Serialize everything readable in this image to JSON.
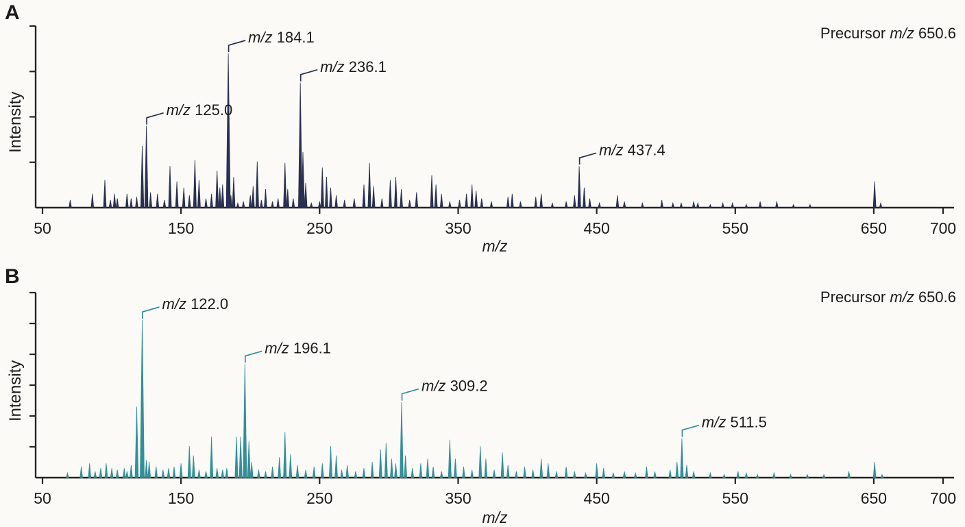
{
  "figure": {
    "background": "#fbfaf7",
    "text_color": "#1c1c1c",
    "axis_color": "#242424"
  },
  "panels": [
    {
      "panel_label": "A",
      "y_axis_label": "Intensity",
      "x_axis_label": "m/z",
      "series_color": "#2a3150",
      "precursor": {
        "pre": "Precursor ",
        "mid": "m/z",
        "val": " 650.6"
      }
    },
    {
      "panel_label": "B",
      "y_axis_label": "Intensity",
      "x_axis_label": "m/z",
      "series_color": "#338f99",
      "precursor": {
        "pre": "Precursor ",
        "mid": "m/z",
        "val": " 650.6"
      }
    }
  ],
  "chart_data": [
    {
      "type": "bar",
      "subtype": "mass-spectrum",
      "panel": "A",
      "title": "Precursor m/z 650.6",
      "xlabel": "m/z",
      "ylabel": "Intensity",
      "xlim": [
        50,
        700
      ],
      "x_ticks": [
        50,
        150,
        250,
        350,
        450,
        550,
        650,
        700
      ],
      "y_axis_note": "unlabeled intensity axis; peak heights are % of base peak",
      "annotated_peaks": [
        {
          "mz": 125.0,
          "label_prefix": "m/z",
          "label_value": "125.0"
        },
        {
          "mz": 184.1,
          "label_prefix": "m/z",
          "label_value": "184.1"
        },
        {
          "mz": 236.1,
          "label_prefix": "m/z",
          "label_value": "236.1"
        },
        {
          "mz": 437.4,
          "label_prefix": "m/z",
          "label_value": "437.4"
        }
      ],
      "peaks": [
        [
          70,
          5
        ],
        [
          86,
          9
        ],
        [
          95,
          18
        ],
        [
          99,
          5
        ],
        [
          102,
          9
        ],
        [
          104,
          6
        ],
        [
          111,
          9
        ],
        [
          114,
          6
        ],
        [
          118,
          7
        ],
        [
          122,
          40
        ],
        [
          125.0,
          53
        ],
        [
          128,
          10
        ],
        [
          133,
          9
        ],
        [
          138,
          5
        ],
        [
          142,
          27
        ],
        [
          147,
          17
        ],
        [
          152,
          13
        ],
        [
          156,
          8
        ],
        [
          160,
          31
        ],
        [
          163,
          18
        ],
        [
          168,
          6
        ],
        [
          172,
          9
        ],
        [
          176,
          24
        ],
        [
          178,
          13
        ],
        [
          180,
          15
        ],
        [
          184.1,
          100
        ],
        [
          186,
          8
        ],
        [
          188,
          20
        ],
        [
          191,
          3
        ],
        [
          195,
          4
        ],
        [
          200,
          8
        ],
        [
          202,
          14
        ],
        [
          205,
          30
        ],
        [
          208,
          5
        ],
        [
          211,
          12
        ],
        [
          216,
          4
        ],
        [
          220,
          6
        ],
        [
          225,
          29
        ],
        [
          227,
          12
        ],
        [
          231,
          6
        ],
        [
          236.1,
          81
        ],
        [
          238,
          36
        ],
        [
          240,
          16
        ],
        [
          244,
          3
        ],
        [
          250,
          4
        ],
        [
          252,
          26
        ],
        [
          255,
          20
        ],
        [
          258,
          13
        ],
        [
          262,
          8
        ],
        [
          268,
          5
        ],
        [
          275,
          6
        ],
        [
          282,
          15
        ],
        [
          286,
          29
        ],
        [
          289,
          14
        ],
        [
          295,
          6
        ],
        [
          301,
          18
        ],
        [
          305,
          20
        ],
        [
          309,
          12
        ],
        [
          315,
          5
        ],
        [
          320,
          10
        ],
        [
          331,
          21
        ],
        [
          334,
          15
        ],
        [
          338,
          9
        ],
        [
          344,
          4
        ],
        [
          351,
          5
        ],
        [
          356,
          9
        ],
        [
          360,
          15
        ],
        [
          363,
          11
        ],
        [
          367,
          6
        ],
        [
          374,
          4
        ],
        [
          386,
          7
        ],
        [
          389,
          9
        ],
        [
          395,
          4
        ],
        [
          406,
          7
        ],
        [
          410,
          9
        ],
        [
          418,
          3
        ],
        [
          428,
          4
        ],
        [
          434,
          8
        ],
        [
          437.4,
          27
        ],
        [
          441,
          13
        ],
        [
          445,
          6
        ],
        [
          452,
          3
        ],
        [
          465,
          8
        ],
        [
          470,
          4
        ],
        [
          483,
          3
        ],
        [
          497,
          5
        ],
        [
          505,
          3
        ],
        [
          511,
          3
        ],
        [
          520,
          4
        ],
        [
          523,
          3
        ],
        [
          532,
          2
        ],
        [
          541,
          3
        ],
        [
          548,
          3
        ],
        [
          558,
          2
        ],
        [
          568,
          4
        ],
        [
          580,
          4
        ],
        [
          592,
          2
        ],
        [
          604,
          2
        ],
        [
          650.6,
          17
        ],
        [
          655,
          3
        ]
      ]
    },
    {
      "type": "bar",
      "subtype": "mass-spectrum",
      "panel": "B",
      "title": "Precursor m/z 650.6",
      "xlabel": "m/z",
      "ylabel": "Intensity",
      "xlim": [
        50,
        700
      ],
      "x_ticks": [
        50,
        150,
        250,
        350,
        450,
        550,
        650,
        700
      ],
      "y_axis_note": "unlabeled intensity axis; peak heights are % of base peak",
      "annotated_peaks": [
        {
          "mz": 122.0,
          "label_prefix": "m/z",
          "label_value": "122.0"
        },
        {
          "mz": 196.1,
          "label_prefix": "m/z",
          "label_value": "196.1"
        },
        {
          "mz": 309.2,
          "label_prefix": "m/z",
          "label_value": "309.2"
        },
        {
          "mz": 511.5,
          "label_prefix": "m/z",
          "label_value": "511.5"
        }
      ],
      "peaks": [
        [
          68,
          3
        ],
        [
          78,
          7
        ],
        [
          84,
          9
        ],
        [
          88,
          4
        ],
        [
          92,
          6
        ],
        [
          96,
          9
        ],
        [
          100,
          6
        ],
        [
          104,
          5
        ],
        [
          109,
          6
        ],
        [
          111,
          4
        ],
        [
          114,
          8
        ],
        [
          118,
          45
        ],
        [
          122.0,
          100
        ],
        [
          125,
          11
        ],
        [
          127,
          10
        ],
        [
          132,
          7
        ],
        [
          137,
          5
        ],
        [
          141,
          6
        ],
        [
          145,
          7
        ],
        [
          150,
          9
        ],
        [
          156,
          20
        ],
        [
          159,
          14
        ],
        [
          163,
          5
        ],
        [
          168,
          4
        ],
        [
          172,
          26
        ],
        [
          176,
          6
        ],
        [
          180,
          5
        ],
        [
          183,
          6
        ],
        [
          190,
          26
        ],
        [
          193,
          26
        ],
        [
          196.1,
          72
        ],
        [
          199,
          23
        ],
        [
          201,
          10
        ],
        [
          206,
          5
        ],
        [
          211,
          4
        ],
        [
          216,
          7
        ],
        [
          221,
          13
        ],
        [
          225,
          29
        ],
        [
          229,
          15
        ],
        [
          234,
          8
        ],
        [
          240,
          5
        ],
        [
          246,
          7
        ],
        [
          252,
          9
        ],
        [
          258,
          20
        ],
        [
          262,
          14
        ],
        [
          266,
          5
        ],
        [
          270,
          8
        ],
        [
          276,
          4
        ],
        [
          282,
          6
        ],
        [
          288,
          10
        ],
        [
          294,
          18
        ],
        [
          298,
          22
        ],
        [
          302,
          12
        ],
        [
          305,
          9
        ],
        [
          309.2,
          48
        ],
        [
          312,
          14
        ],
        [
          317,
          6
        ],
        [
          323,
          9
        ],
        [
          328,
          12
        ],
        [
          332,
          7
        ],
        [
          338,
          4
        ],
        [
          344,
          24
        ],
        [
          348,
          12
        ],
        [
          354,
          7
        ],
        [
          360,
          5
        ],
        [
          366,
          20
        ],
        [
          370,
          12
        ],
        [
          376,
          5
        ],
        [
          382,
          16
        ],
        [
          386,
          8
        ],
        [
          392,
          4
        ],
        [
          398,
          7
        ],
        [
          404,
          5
        ],
        [
          410,
          12
        ],
        [
          415,
          9
        ],
        [
          421,
          4
        ],
        [
          428,
          7
        ],
        [
          434,
          4
        ],
        [
          442,
          3
        ],
        [
          450,
          9
        ],
        [
          455,
          6
        ],
        [
          462,
          3
        ],
        [
          470,
          4
        ],
        [
          478,
          3
        ],
        [
          486,
          7
        ],
        [
          492,
          4
        ],
        [
          503,
          5
        ],
        [
          508,
          10
        ],
        [
          511.5,
          25
        ],
        [
          515,
          8
        ],
        [
          520,
          4
        ],
        [
          532,
          3
        ],
        [
          542,
          2
        ],
        [
          552,
          4
        ],
        [
          558,
          3
        ],
        [
          566,
          2
        ],
        [
          578,
          3
        ],
        [
          590,
          2
        ],
        [
          602,
          2
        ],
        [
          614,
          2
        ],
        [
          632,
          4
        ],
        [
          650.6,
          10
        ],
        [
          656,
          2
        ]
      ]
    }
  ]
}
